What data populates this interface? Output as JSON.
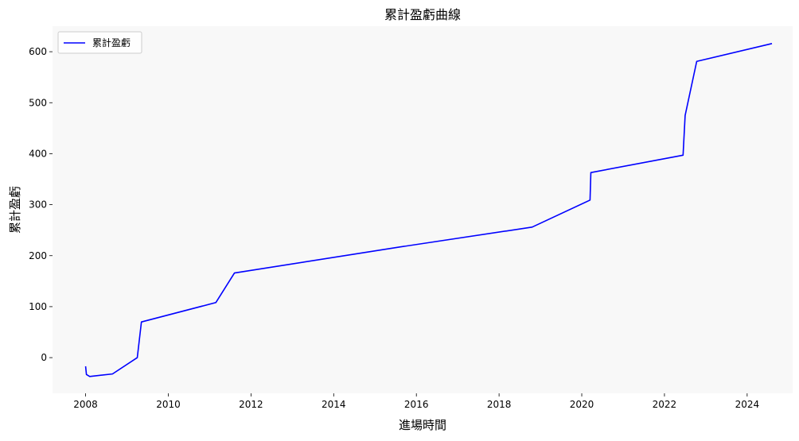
{
  "chart_data": {
    "type": "line",
    "title": "累計盈虧曲線",
    "xlabel": "進場時間",
    "ylabel": "累計盈虧",
    "x_axis_type": "year",
    "xlim": [
      2007.2,
      2025.1
    ],
    "ylim": [
      -70,
      650
    ],
    "x_ticks": [
      2008,
      2010,
      2012,
      2014,
      2016,
      2018,
      2020,
      2022,
      2024
    ],
    "x_tick_labels": [
      "2008",
      "2010",
      "2012",
      "2014",
      "2016",
      "2018",
      "2020",
      "2022",
      "2024"
    ],
    "y_ticks": [
      0,
      100,
      200,
      300,
      400,
      500,
      600
    ],
    "y_tick_labels": [
      "0",
      "100",
      "200",
      "300",
      "400",
      "500",
      "600"
    ],
    "grid": false,
    "legend_position": "top-left",
    "plot_background": "#f8f8f8",
    "series": [
      {
        "name": "累計盈虧",
        "color": "#0000ff",
        "x": [
          2008.0,
          2008.02,
          2008.1,
          2008.65,
          2009.25,
          2009.35,
          2011.15,
          2011.6,
          2015.6,
          2018.8,
          2020.2,
          2020.22,
          2022.45,
          2022.5,
          2022.78,
          2024.6
        ],
        "y": [
          -17,
          -33,
          -37,
          -32,
          0,
          70,
          108,
          166,
          217,
          256,
          309,
          363,
          397,
          475,
          581,
          616
        ]
      }
    ]
  }
}
